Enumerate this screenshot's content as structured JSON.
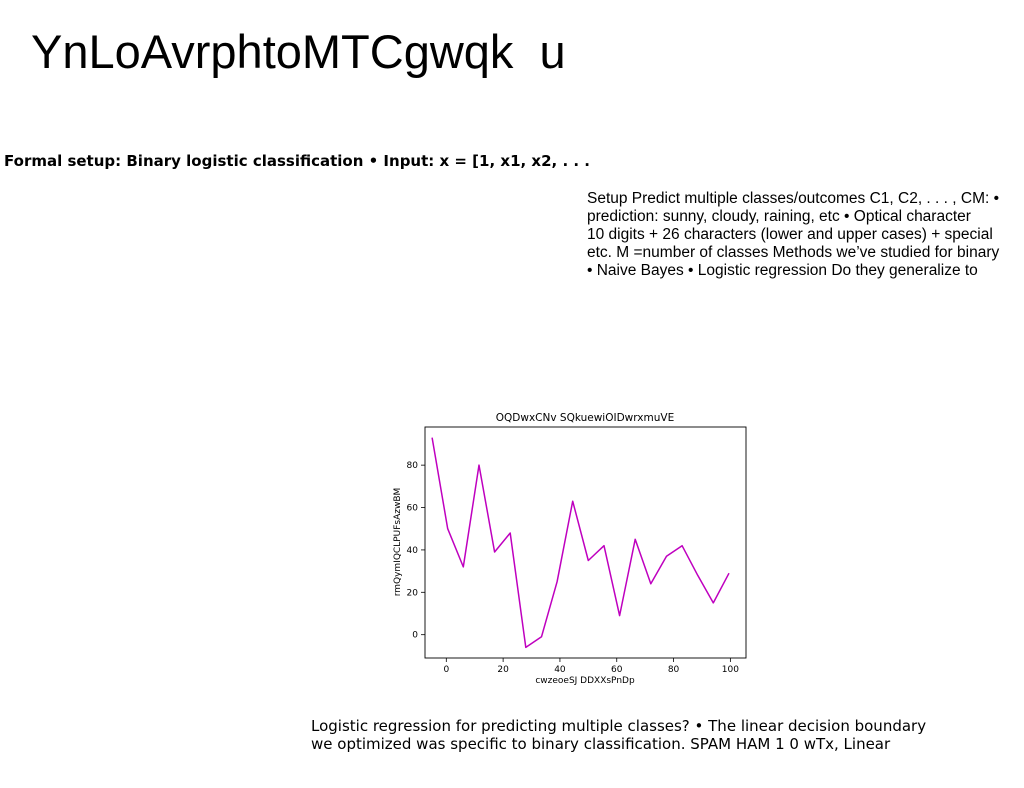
{
  "slide": {
    "title": "YnLoAvrphtoMTCgwqk  u",
    "subtitle": "Formal setup: Binary logistic classification • Input: x = [1, x1, x2, . . .",
    "setup_lines": [
      "Setup Predict multiple classes/outcomes C1, C2, . . . , CM: •",
      "prediction: sunny, cloudy, raining, etc • Optical character",
      "10 digits + 26 characters (lower and upper cases) + special",
      "etc. M =number of classes Methods we’ve studied for binary",
      "• Naive Bayes • Logistic regression Do they generalize to"
    ],
    "footer_lines": [
      "Logistic regression for predicting multiple classes? • The linear decision boundary",
      "we optimized was specific to binary classification. SPAM HAM 1 0 wTx, Linear"
    ]
  },
  "chart_data": {
    "type": "line",
    "title": "OQDwxCNv SQkuewiOIDwrxmuVE",
    "xlabel": "cwzeoeSJ DDXXsPnDp",
    "ylabel": "rmQymIQCLPUFsAzwBM",
    "xlim": [
      -7.5,
      105.5
    ],
    "ylim": [
      -11,
      98
    ],
    "xticks": [
      0,
      20,
      40,
      60,
      80,
      100
    ],
    "yticks": [
      0,
      20,
      40,
      60,
      80
    ],
    "grid": false,
    "line_color": "#bf00bf",
    "x": [
      -5,
      0.5,
      6,
      11.5,
      17,
      22.5,
      28,
      33.5,
      39,
      44.5,
      50,
      55.5,
      61,
      66.5,
      72,
      77.5,
      83,
      88.5,
      94,
      99.5
    ],
    "y": [
      93,
      50,
      32,
      80,
      39,
      48,
      -6,
      -1,
      25,
      63,
      35,
      42,
      9,
      45,
      24,
      37,
      42,
      28,
      15,
      29
    ]
  }
}
